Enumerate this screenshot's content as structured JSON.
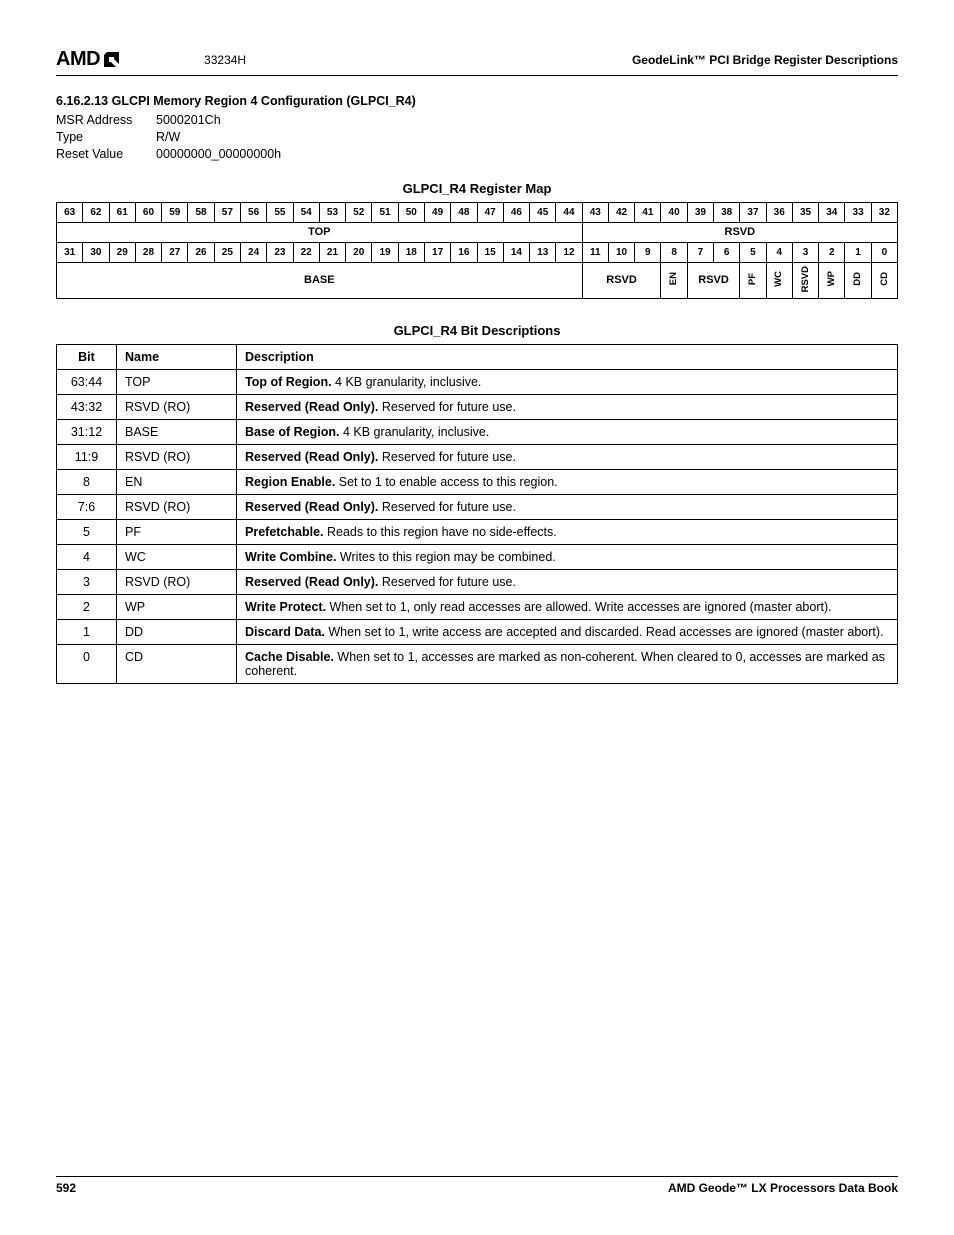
{
  "header": {
    "logo_text": "AMD",
    "doc_number": "33234H",
    "right_title": "GeodeLink™ PCI Bridge Register Descriptions"
  },
  "section": {
    "heading": "6.16.2.13 GLCPI Memory Region 4 Configuration (GLPCI_R4)",
    "rows": [
      {
        "label": "MSR Address",
        "value": "5000201Ch"
      },
      {
        "label": "Type",
        "value": "R/W"
      },
      {
        "label": "Reset Value",
        "value": "00000000_00000000h"
      }
    ]
  },
  "regmap": {
    "title": "GLPCI_R4 Register Map",
    "bits_high": [
      "63",
      "62",
      "61",
      "60",
      "59",
      "58",
      "57",
      "56",
      "55",
      "54",
      "53",
      "52",
      "51",
      "50",
      "49",
      "48",
      "47",
      "46",
      "45",
      "44",
      "43",
      "42",
      "41",
      "40",
      "39",
      "38",
      "37",
      "36",
      "35",
      "34",
      "33",
      "32"
    ],
    "row_high_spans": [
      {
        "label": "TOP",
        "span": 20
      },
      {
        "label": "RSVD",
        "span": 12
      }
    ],
    "bits_low": [
      "31",
      "30",
      "29",
      "28",
      "27",
      "26",
      "25",
      "24",
      "23",
      "22",
      "21",
      "20",
      "19",
      "18",
      "17",
      "16",
      "15",
      "14",
      "13",
      "12",
      "11",
      "10",
      "9",
      "8",
      "7",
      "6",
      "5",
      "4",
      "3",
      "2",
      "1",
      "0"
    ],
    "row_low_spans": [
      {
        "label": "BASE",
        "span": 20,
        "vertical": false
      },
      {
        "label": "RSVD",
        "span": 3,
        "vertical": false
      },
      {
        "label": "EN",
        "span": 1,
        "vertical": true
      },
      {
        "label": "RSVD",
        "span": 2,
        "vertical": false
      },
      {
        "label": "PF",
        "span": 1,
        "vertical": true
      },
      {
        "label": "WC",
        "span": 1,
        "vertical": true
      },
      {
        "label": "RSVD",
        "span": 1,
        "vertical": true
      },
      {
        "label": "WP",
        "span": 1,
        "vertical": true
      },
      {
        "label": "DD",
        "span": 1,
        "vertical": true
      },
      {
        "label": "CD",
        "span": 1,
        "vertical": true
      }
    ]
  },
  "bitdesc": {
    "title": "GLPCI_R4 Bit Descriptions",
    "columns": [
      "Bit",
      "Name",
      "Description"
    ],
    "rows": [
      {
        "bit": "63:44",
        "name": "TOP",
        "desc_bold": "Top of Region.",
        "desc_rest": " 4 KB granularity, inclusive."
      },
      {
        "bit": "43:32",
        "name": "RSVD (RO)",
        "desc_bold": "Reserved (Read Only).",
        "desc_rest": " Reserved for future use."
      },
      {
        "bit": "31:12",
        "name": "BASE",
        "desc_bold": "Base of Region.",
        "desc_rest": " 4 KB granularity, inclusive."
      },
      {
        "bit": "11:9",
        "name": "RSVD (RO)",
        "desc_bold": "Reserved (Read Only).",
        "desc_rest": " Reserved for future use."
      },
      {
        "bit": "8",
        "name": "EN",
        "desc_bold": "Region Enable.",
        "desc_rest": " Set to 1 to enable access to this region."
      },
      {
        "bit": "7:6",
        "name": "RSVD (RO)",
        "desc_bold": "Reserved (Read Only).",
        "desc_rest": " Reserved for future use."
      },
      {
        "bit": "5",
        "name": "PF",
        "desc_bold": "Prefetchable.",
        "desc_rest": " Reads to this region have no side-effects."
      },
      {
        "bit": "4",
        "name": "WC",
        "desc_bold": "Write Combine.",
        "desc_rest": " Writes to this region may be combined."
      },
      {
        "bit": "3",
        "name": "RSVD (RO)",
        "desc_bold": "Reserved (Read Only).",
        "desc_rest": " Reserved for future use."
      },
      {
        "bit": "2",
        "name": "WP",
        "desc_bold": "Write Protect.",
        "desc_rest": " When set to 1, only read accesses are allowed. Write accesses are ignored (master abort)."
      },
      {
        "bit": "1",
        "name": "DD",
        "desc_bold": "Discard Data.",
        "desc_rest": " When set to 1, write access are accepted and discarded. Read accesses are ignored (master abort)."
      },
      {
        "bit": "0",
        "name": "CD",
        "desc_bold": "Cache Disable.",
        "desc_rest": " When set to 1, accesses are marked as non-coherent. When cleared to 0, accesses are marked as coherent."
      }
    ]
  },
  "footer": {
    "page": "592",
    "book": "AMD Geode™ LX Processors Data Book"
  }
}
